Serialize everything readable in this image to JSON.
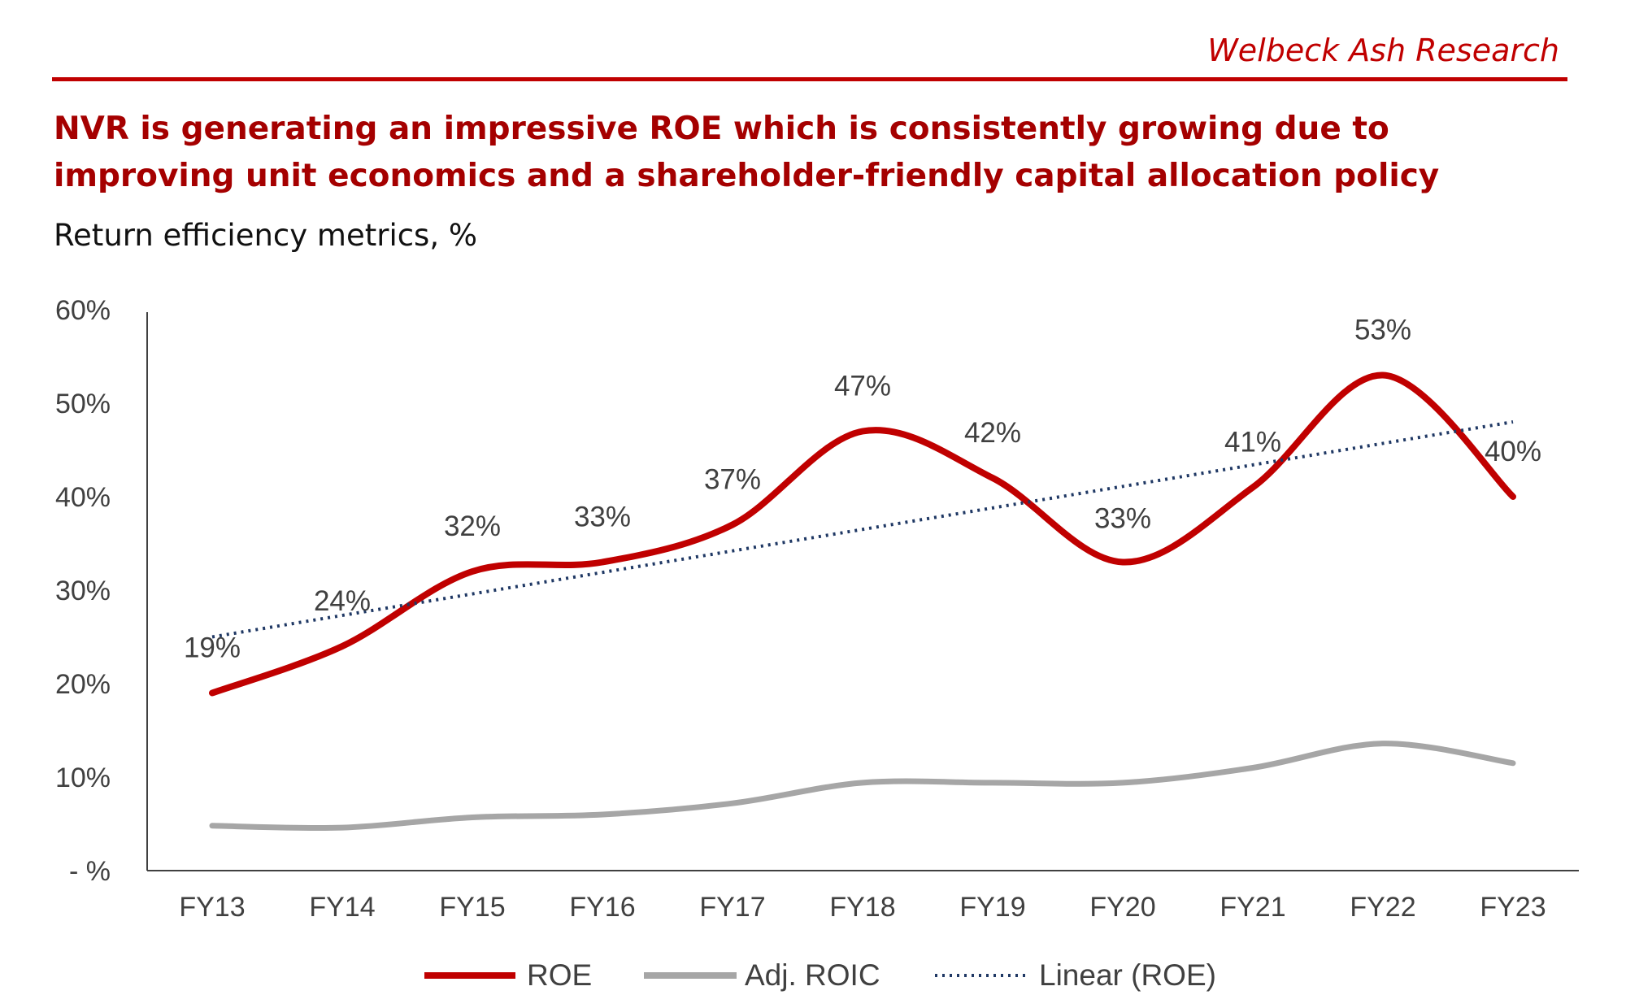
{
  "brand": "Welbeck Ash Research",
  "headline": "NVR is generating an impressive ROE which is consistently growing due to improving unit economics and a shareholder-friendly capital allocation policy",
  "subtitle": "Return efficiency metrics, %",
  "colors": {
    "roe": "#c00000",
    "roic": "#a6a6a6",
    "trend": "#1f3864",
    "axis": "#404040",
    "brand": "#c00000"
  },
  "chart_data": {
    "type": "line",
    "categories": [
      "FY13",
      "FY14",
      "FY15",
      "FY16",
      "FY17",
      "FY18",
      "FY19",
      "FY20",
      "FY21",
      "FY22",
      "FY23"
    ],
    "series": [
      {
        "name": "ROE",
        "values": [
          19,
          24,
          32,
          33,
          37,
          47,
          42,
          33,
          41,
          53,
          40
        ],
        "labels": [
          "19%",
          "24%",
          "32%",
          "33%",
          "37%",
          "47%",
          "42%",
          "33%",
          "41%",
          "53%",
          "40%"
        ]
      },
      {
        "name": "Adj. ROIC",
        "values": [
          4.8,
          4.6,
          5.7,
          6.0,
          7.2,
          9.4,
          9.4,
          9.4,
          11.0,
          13.6,
          11.5
        ]
      },
      {
        "name": "Linear (ROE)",
        "values": [
          25.0,
          27.3,
          29.6,
          31.9,
          34.2,
          36.5,
          38.8,
          41.1,
          43.4,
          45.7,
          48.0
        ]
      }
    ],
    "yticks": [
      "- %",
      "10%",
      "20%",
      "30%",
      "40%",
      "50%",
      "60%"
    ],
    "ylim": [
      0,
      60
    ],
    "legend": [
      "ROE",
      "Adj. ROIC",
      "Linear (ROE)"
    ],
    "legend_position": "bottom"
  }
}
